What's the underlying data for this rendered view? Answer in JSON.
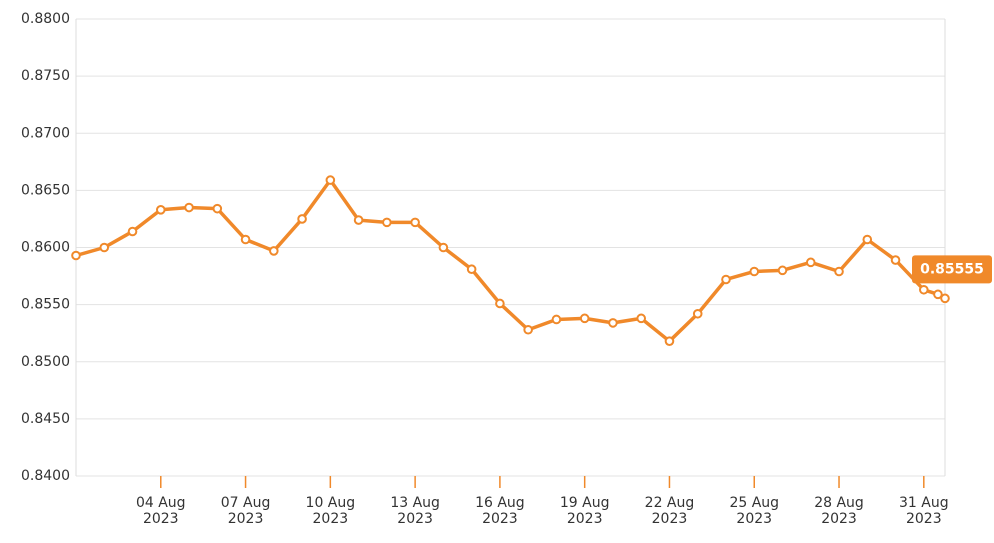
{
  "chart_data": {
    "type": "line",
    "x": [
      "2023-08-01",
      "2023-08-02",
      "2023-08-03",
      "2023-08-04",
      "2023-08-05",
      "2023-08-06",
      "2023-08-07",
      "2023-08-08",
      "2023-08-09",
      "2023-08-10",
      "2023-08-11",
      "2023-08-12",
      "2023-08-13",
      "2023-08-14",
      "2023-08-15",
      "2023-08-16",
      "2023-08-17",
      "2023-08-18",
      "2023-08-19",
      "2023-08-20",
      "2023-08-21",
      "2023-08-22",
      "2023-08-23",
      "2023-08-24",
      "2023-08-25",
      "2023-08-26",
      "2023-08-27",
      "2023-08-28",
      "2023-08-29",
      "2023-08-30",
      "2023-08-31",
      "2023-08-31T12:00Z",
      "2023-08-31T18:00Z"
    ],
    "series": [
      {
        "color": "#f0892a",
        "values": [
          0.8593,
          0.86,
          0.8614,
          0.8633,
          0.8635,
          0.8634,
          0.8607,
          0.8597,
          0.8625,
          0.8659,
          0.8624,
          0.8622,
          0.8622,
          0.86,
          0.8581,
          0.8551,
          0.8528,
          0.8537,
          0.8538,
          0.8534,
          0.8538,
          0.8518,
          0.8542,
          0.8572,
          0.8579,
          0.858,
          0.8587,
          0.8579,
          0.8607,
          0.8589,
          0.8563,
          0.8559,
          0.85555
        ],
        "value_labels": {
          "32": "0.85555"
        }
      }
    ],
    "xlim": [
      "2023-08-01",
      "2023-08-31T18:00Z"
    ],
    "xticks": [
      {
        "value": "2023-08-04",
        "label": "04 Aug 2023"
      },
      {
        "value": "2023-08-07",
        "label": "07 Aug 2023"
      },
      {
        "value": "2023-08-10",
        "label": "10 Aug 2023"
      },
      {
        "value": "2023-08-13",
        "label": "13 Aug 2023"
      },
      {
        "value": "2023-08-16",
        "label": "16 Aug 2023"
      },
      {
        "value": "2023-08-19",
        "label": "19 Aug 2023"
      },
      {
        "value": "2023-08-22",
        "label": "22 Aug 2023"
      },
      {
        "value": "2023-08-25",
        "label": "25 Aug 2023"
      },
      {
        "value": "2023-08-28",
        "label": "28 Aug 2023"
      },
      {
        "value": "2023-08-31",
        "label": "31 Aug 2023"
      }
    ],
    "ylim": [
      0.84,
      0.88
    ],
    "yticks": [
      {
        "value": 0.84,
        "label": "0.8400"
      },
      {
        "value": 0.845,
        "label": "0.8450"
      },
      {
        "value": 0.85,
        "label": "0.8500"
      },
      {
        "value": 0.855,
        "label": "0.8550"
      },
      {
        "value": 0.86,
        "label": "0.8600"
      },
      {
        "value": 0.865,
        "label": "0.8650"
      },
      {
        "value": 0.87,
        "label": "0.8700"
      },
      {
        "value": 0.875,
        "label": "0.8750"
      },
      {
        "value": 0.88,
        "label": "0.8800"
      }
    ],
    "grid": true
  }
}
